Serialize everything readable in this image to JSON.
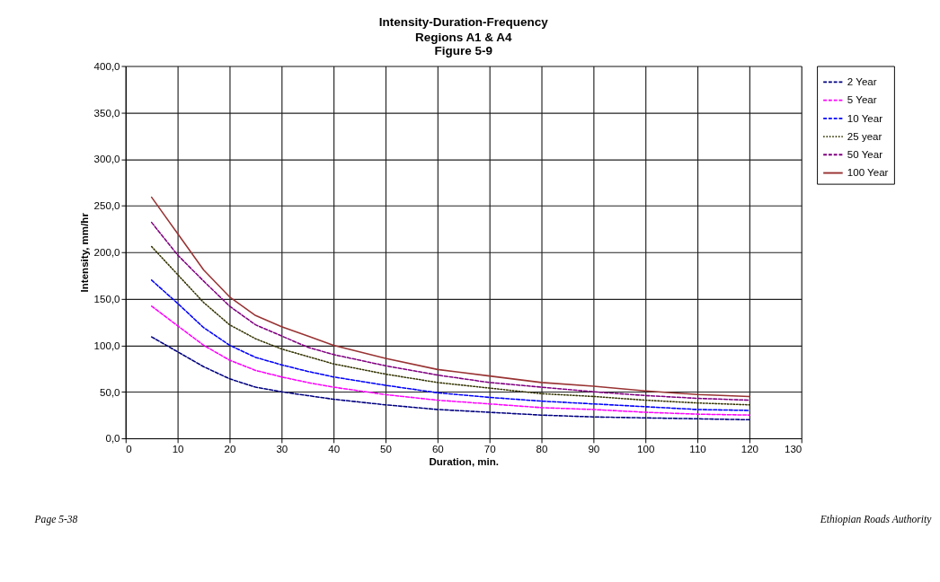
{
  "chart_data": {
    "type": "line",
    "title": "Intensity-Duration-Frequency",
    "subtitle": "Regions A1 & A4\nFigure 5-9",
    "xlabel": "Duration, min.",
    "ylabel": "Intensity, mm/hr",
    "x": [
      5,
      10,
      15,
      20,
      25,
      30,
      35,
      40,
      50,
      60,
      70,
      80,
      90,
      100,
      110,
      120
    ],
    "series": [
      {
        "name": "2 Year",
        "color": "#000080",
        "line_style": "dashed",
        "values": [
          109,
          93,
          77,
          64,
          55,
          50,
          46,
          42,
          36,
          31,
          28,
          25,
          23,
          22,
          21,
          20
        ]
      },
      {
        "name": "5 Year",
        "color": "#ff00ff",
        "line_style": "dashed",
        "values": [
          142,
          121,
          100,
          84,
          73,
          66,
          60,
          55,
          47,
          41,
          37,
          33,
          31,
          28,
          26,
          25
        ]
      },
      {
        "name": "10 Year",
        "color": "#0000ff",
        "line_style": "dashed",
        "values": [
          170,
          145,
          119,
          100,
          87,
          79,
          72,
          66,
          57,
          49,
          44,
          40,
          37,
          34,
          31,
          30
        ]
      },
      {
        "name": "25 year",
        "color": "#333300",
        "line_style": "dotted",
        "values": [
          206,
          176,
          146,
          122,
          107,
          96,
          88,
          80,
          69,
          60,
          54,
          48,
          45,
          41,
          38,
          36
        ]
      },
      {
        "name": "50 Year",
        "color": "#800080",
        "line_style": "dashed",
        "values": [
          232,
          197,
          169,
          142,
          122,
          110,
          98,
          90,
          78,
          68,
          60,
          55,
          50,
          46,
          43,
          41
        ]
      },
      {
        "name": "100 Year",
        "color": "#993333",
        "line_style": "solid",
        "values": [
          259,
          220,
          181,
          152,
          132,
          120,
          110,
          100,
          86,
          74,
          67,
          60,
          56,
          51,
          47,
          45
        ]
      }
    ],
    "xlim": [
      0,
      130
    ],
    "xticks": [
      0,
      10,
      20,
      30,
      40,
      50,
      60,
      70,
      80,
      90,
      100,
      110,
      120,
      130
    ],
    "ylim": [
      0,
      400
    ],
    "yticks": [
      {
        "value": 0,
        "label": "0,0"
      },
      {
        "value": 50,
        "label": "50,0"
      },
      {
        "value": 100,
        "label": "100,0"
      },
      {
        "value": 150,
        "label": "150,0"
      },
      {
        "value": 200,
        "label": "200,0"
      },
      {
        "value": 250,
        "label": "250,0"
      },
      {
        "value": 300,
        "label": "300,0"
      },
      {
        "value": 350,
        "label": "350,0"
      },
      {
        "value": 400,
        "label": "400,0"
      }
    ],
    "grid": true,
    "legend": "right",
    "marker": "none",
    "annotations": [
      "Page 5-38",
      "Ethiopian Roads Authority"
    ]
  }
}
